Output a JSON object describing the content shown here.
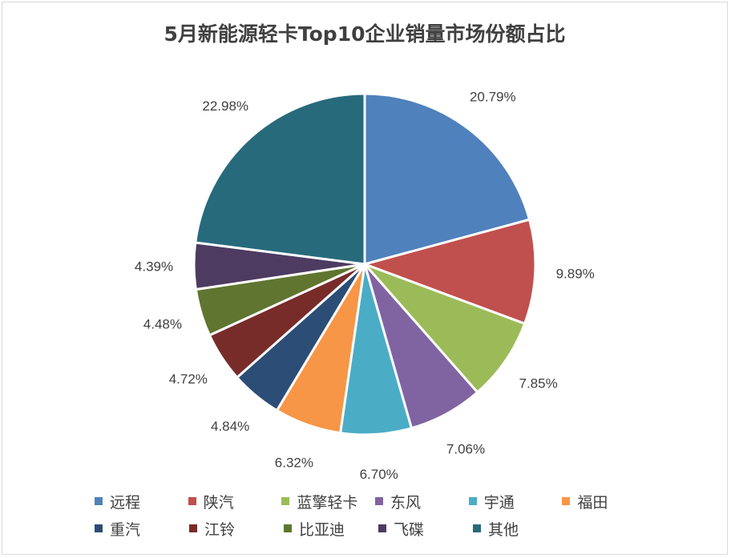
{
  "chart_data": {
    "type": "pie",
    "title": "5月新能源轻卡Top10企业销量市场份额占比",
    "categories": [
      "远程",
      "陕汽",
      "蓝擎轻卡",
      "东风",
      "宇通",
      "福田",
      "重汽",
      "江铃",
      "比亚迪",
      "飞碟",
      "其他"
    ],
    "values": [
      20.79,
      9.89,
      7.85,
      7.06,
      6.7,
      6.32,
      4.84,
      4.72,
      4.48,
      4.39,
      22.98
    ],
    "labels": [
      "20.79%",
      "9.89%",
      "7.85%",
      "7.06%",
      "6.70%",
      "6.32%",
      "4.84%",
      "4.72%",
      "4.48%",
      "4.39%",
      "22.98%"
    ],
    "colors": [
      "#4f81bd",
      "#c0504d",
      "#9bbb59",
      "#8064a2",
      "#4bacc6",
      "#f79646",
      "#2c4d75",
      "#772c2a",
      "#5f7530",
      "#4d3b62",
      "#276a7c"
    ],
    "legend": "bottom"
  }
}
